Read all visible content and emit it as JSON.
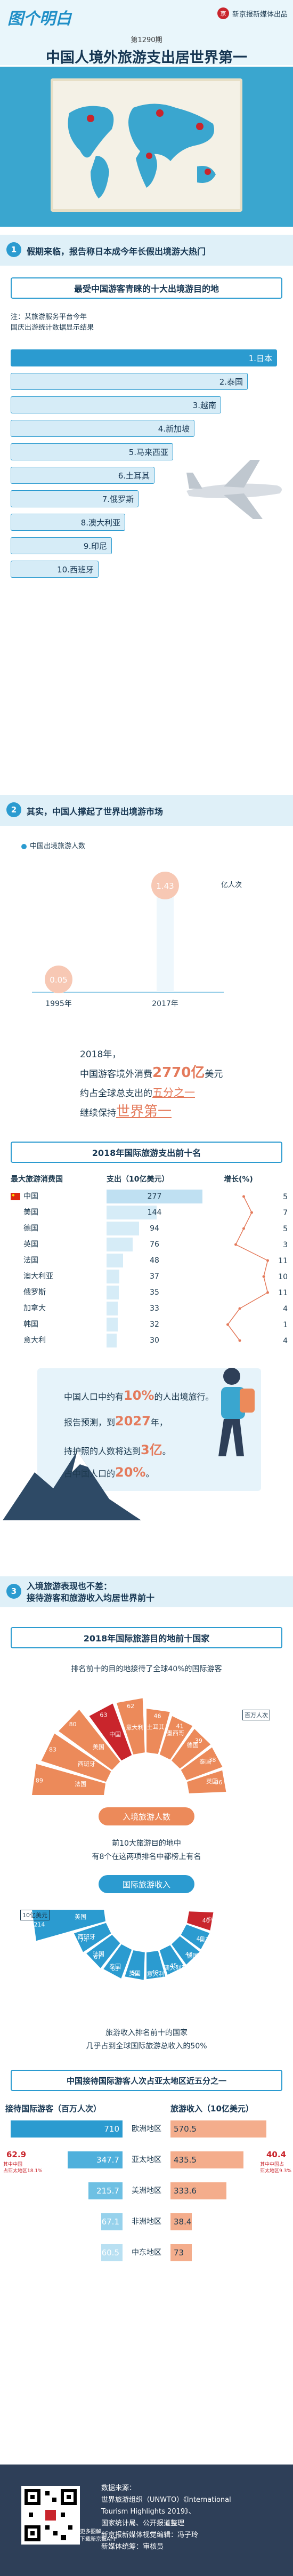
{
  "header": {
    "logo": "图个明白",
    "publisher": "新京报新媒体出品",
    "publisher_mark": "京",
    "issue": "第1290期",
    "title": "中国人境外旅游支出居世界第一"
  },
  "section1": {
    "num": "1",
    "title": "假期来临，报告称日本成今年长假出境游大热门",
    "box_title": "最受中国游客青睐的十大出境游目的地",
    "note_lines": [
      "注：某旅游服务平台今年",
      "国庆出游统计数据显示结果"
    ],
    "ranks": [
      "1.日本",
      "2.泰国",
      "3.越南",
      "4.新加坡",
      "5.马来西亚",
      "6.土耳其",
      "7.俄罗斯",
      "8.澳大利亚",
      "9.印尼",
      "10.西班牙"
    ]
  },
  "section2": {
    "num": "2",
    "title": "其实，中国人撑起了世界出境游市场",
    "legend": "中国出境旅游人数",
    "unit": "亿人次",
    "para": {
      "l1": "2018年，",
      "l2a": "中国游客境外消费",
      "l2b": "2770亿",
      "l2c": "美元",
      "l3a": "约占全球总支出的",
      "l3b": "五分之一",
      "l4a": "继续保持",
      "l4b": "世界第一"
    },
    "table_title": "2018年国际旅游支出前十名",
    "table_headers": [
      "最大旅游消费国",
      "支出（10亿美元）",
      "增长(%)"
    ],
    "facts": {
      "f1a": "中国人口中约有",
      "f1b": "10%",
      "f1c": "的人出境旅行。",
      "f2a": "报告预测，到",
      "f2b": "2027",
      "f2c": "年，",
      "f3a": "持护照的人数将达到",
      "f3b": "3亿",
      "f3c": "。",
      "f4a": "占中国人口的",
      "f4b": "20%",
      "f4c": "。"
    }
  },
  "section3": {
    "num": "3",
    "title_l1": "入境旅游表现也不差：",
    "title_l2": "接待游客和旅游收入均居世界前十",
    "box_title": "2018年国际旅游目的地前十国家",
    "intro": "排名前十的目的地接待了全球40%的国际游客",
    "arrivals_unit": "百万人次",
    "arrivals_pill": "入境旅游人数",
    "mid1": "前10大旅游目的地中",
    "mid2": "有8个在这两项排名中都榜上有名",
    "receipts_pill": "国际旅游收入",
    "receipts_unit": "10亿美元",
    "bottom1": "旅游收入排名前十的国家",
    "bottom2": "几乎占到全球国际旅游总收入的50%",
    "region_title": "中国接待国际游客人次占亚太地区近五分之一",
    "col_left": "接待国际游客（百万人次）",
    "col_right": "旅游收入（10亿美元）",
    "china_arrivals": "62.9",
    "china_arrivals_note1": "其中中国",
    "china_arrivals_note2": "占亚太地区18.1%",
    "china_receipts": "40.4",
    "china_receipts_note1": "其中中国占",
    "china_receipts_note2": "亚太地区9.3%"
  },
  "footer": {
    "qr_caption1": "更多图解",
    "qr_caption2": "下载新京报APP",
    "lines": [
      "数据来源：",
      "世界旅游组织（UNWTO）《International",
      "Tourism Highlights 2019》、",
      "国家统计局、公开报道整理",
      "新京报新媒体视觉编辑：冯子玲",
      "新媒体统筹：审核员"
    ]
  },
  "colors": {
    "accent": "#2b9bd0",
    "highlight": "#e47a5b",
    "deep_red": "#c9252c",
    "orange": "#ec8a5a",
    "navy": "#163652"
  },
  "chart_data": [
    {
      "type": "bar",
      "title": "",
      "categories": [
        "1995年",
        "2017年"
      ],
      "series": [
        {
          "name": "中国出境旅游人数",
          "values": [
            0.05,
            1.43
          ]
        }
      ],
      "ylabel": "亿人次"
    },
    {
      "type": "bar",
      "title": "2018年国际旅游支出前十名",
      "categories": [
        "中国",
        "美国",
        "德国",
        "英国",
        "法国",
        "澳大利亚",
        "俄罗斯",
        "加拿大",
        "韩国",
        "意大利"
      ],
      "series": [
        {
          "name": "支出（10亿美元）",
          "values": [
            277,
            144,
            94,
            76,
            48,
            37,
            35,
            33,
            32,
            30
          ]
        },
        {
          "name": "增长(%)",
          "values": [
            5,
            7,
            5,
            3,
            11,
            10,
            11,
            4,
            1,
            4
          ]
        }
      ]
    },
    {
      "type": "bar",
      "title": "入境旅游人数",
      "categories": [
        "法国",
        "西班牙",
        "美国",
        "中国",
        "意大利",
        "土耳其",
        "墨西哥",
        "德国",
        "泰国",
        "英国"
      ],
      "series": [
        {
          "name": "百万人次",
          "values": [
            89,
            83,
            80,
            63,
            62,
            46,
            41,
            39,
            38,
            36
          ]
        }
      ]
    },
    {
      "type": "bar",
      "title": "国际旅游收入",
      "categories": [
        "美国",
        "西班牙",
        "法国",
        "泰国",
        "英国",
        "意大利",
        "澳大利亚",
        "德国",
        "日本",
        "中国"
      ],
      "series": [
        {
          "name": "10亿美元",
          "values": [
            214,
            74,
            67,
            63,
            52,
            49,
            45,
            43,
            41,
            40
          ]
        }
      ]
    },
    {
      "type": "bar",
      "title": "中国接待国际游客人次占亚太地区近五分之一",
      "categories": [
        "欧洲地区",
        "亚太地区",
        "美洲地区",
        "非洲地区",
        "中东地区"
      ],
      "series": [
        {
          "name": "接待国际游客（百万人次）",
          "values": [
            710.0,
            347.7,
            215.7,
            67.1,
            60.5
          ]
        },
        {
          "name": "旅游收入（10亿美元）",
          "values": [
            570.5,
            435.5,
            333.6,
            38.4,
            73
          ]
        }
      ]
    }
  ]
}
